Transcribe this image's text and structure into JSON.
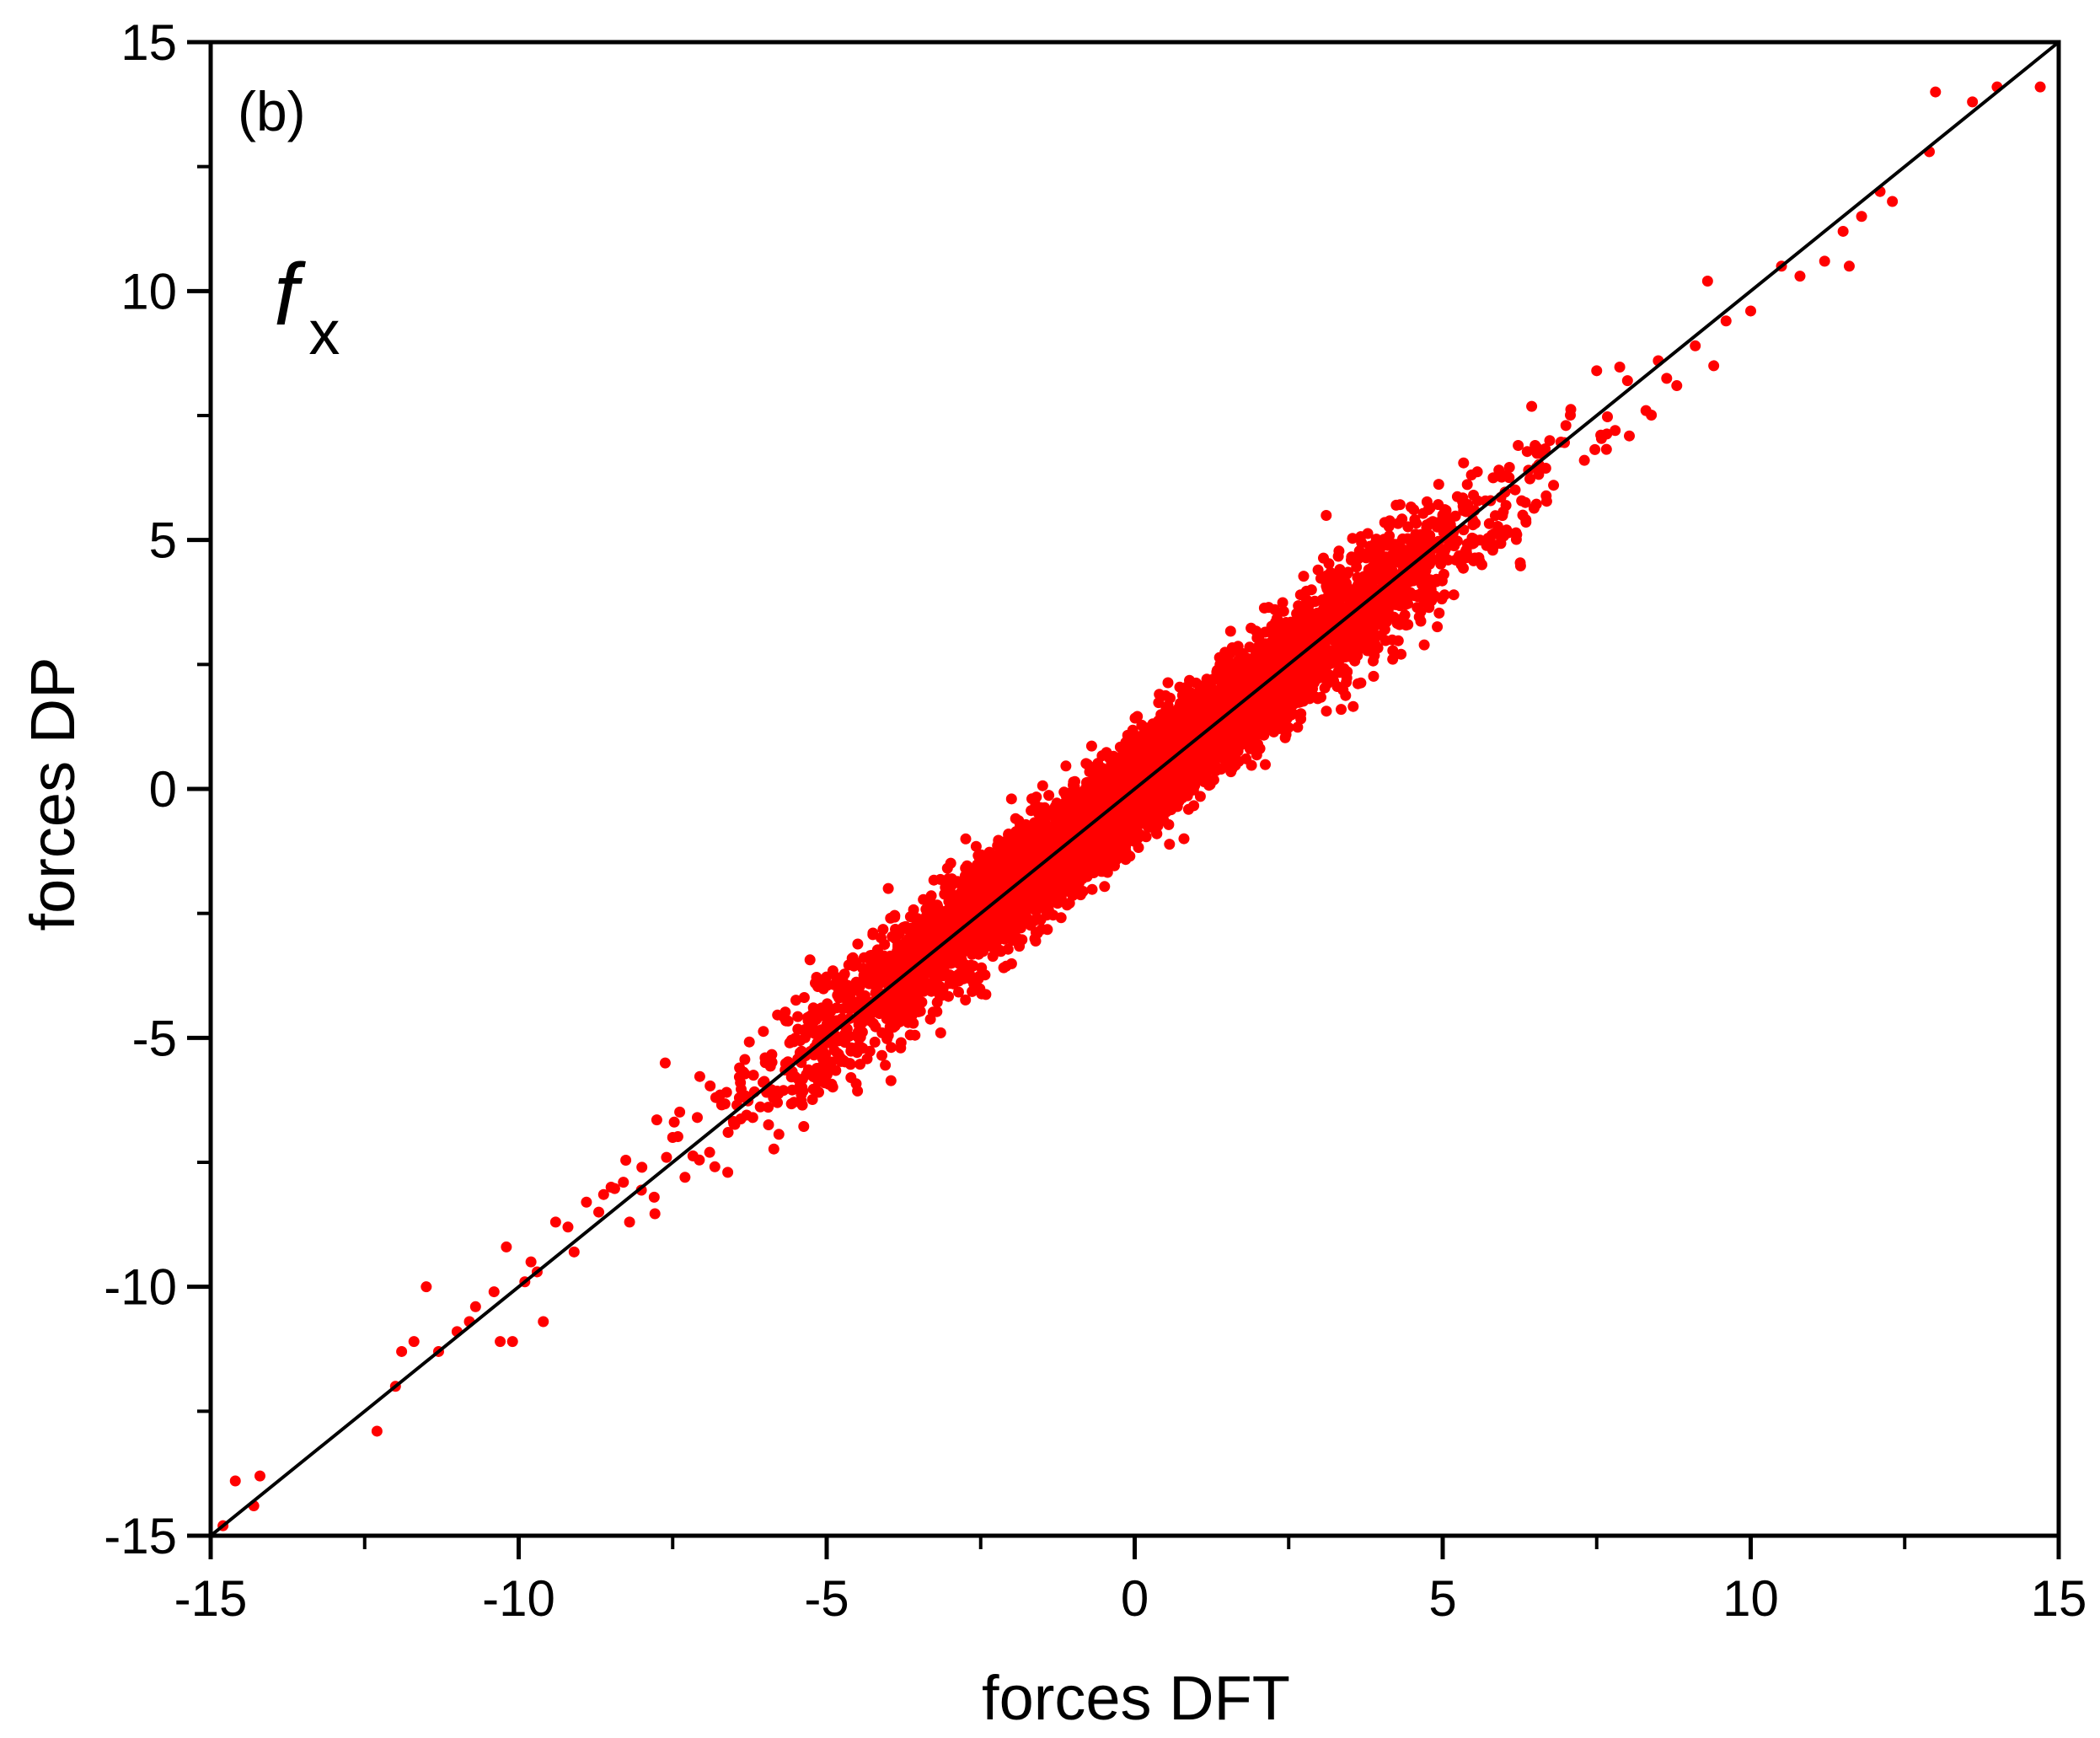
{
  "chart_data": {
    "type": "scatter",
    "panel_label": "(b)",
    "component_label": {
      "main": "f",
      "subscript": "x"
    },
    "xlabel": "forces DFT",
    "ylabel": "forces DP",
    "xlim": [
      -15,
      15
    ],
    "ylim": [
      -15,
      15
    ],
    "xticks": [
      "-15",
      "-10",
      "-5",
      "0",
      "5",
      "10",
      "15"
    ],
    "yticks": [
      "-15",
      "-10",
      "-5",
      "0",
      "5",
      "10",
      "15"
    ],
    "xtick_values": [
      -15,
      -10,
      -5,
      0,
      5,
      10,
      15
    ],
    "ytick_values": [
      -15,
      -10,
      -5,
      0,
      5,
      10,
      15
    ],
    "minor_tick_step": 2.5,
    "grid": false,
    "legend": "none",
    "marker_color": "#ff0000",
    "line_color": "#000000",
    "reference_line": {
      "x": [
        -15,
        15
      ],
      "y": [
        -15,
        15
      ]
    },
    "series": [
      {
        "points": [
          [
            -14.8,
            -14.8
          ],
          [
            -14.6,
            -13.9
          ],
          [
            -14.2,
            -13.8
          ],
          [
            -14.3,
            -14.4
          ],
          [
            -12.3,
            -12.9
          ],
          [
            -12.0,
            -12.0
          ],
          [
            -11.9,
            -11.3
          ],
          [
            -11.7,
            -11.1
          ],
          [
            -11.5,
            -10.0
          ],
          [
            -11.3,
            -11.3
          ],
          [
            -11.0,
            -10.9
          ],
          [
            -10.8,
            -10.7
          ],
          [
            -10.7,
            -10.4
          ],
          [
            -10.4,
            -10.1
          ],
          [
            -10.2,
            -9.2
          ],
          [
            -10.3,
            -11.1
          ],
          [
            -10.1,
            -11.1
          ],
          [
            -9.9,
            -9.9
          ],
          [
            -9.8,
            -9.5
          ],
          [
            -9.6,
            -10.7
          ],
          [
            -9.7,
            -9.7
          ],
          [
            -9.4,
            -8.7
          ],
          [
            -9.2,
            -8.8
          ],
          [
            -9.1,
            -9.3
          ],
          [
            -8.9,
            -8.3
          ],
          [
            -8.7,
            -8.5
          ],
          [
            -8.5,
            -8.0
          ],
          [
            -8.3,
            -7.9
          ],
          [
            -8.2,
            -8.7
          ],
          [
            -8.0,
            -7.6
          ],
          [
            -7.8,
            -8.2
          ],
          [
            -7.6,
            -7.4
          ],
          [
            -7.5,
            -7.0
          ],
          [
            -7.3,
            -7.8
          ],
          [
            -7.1,
            -6.6
          ],
          [
            -6.9,
            -7.3
          ],
          [
            -6.8,
            -6.2
          ],
          [
            -6.6,
            -6.9
          ],
          [
            -6.4,
            -5.9
          ],
          [
            -6.2,
            -6.6
          ],
          [
            -6.0,
            -5.4
          ],
          [
            -5.8,
            -6.3
          ],
          [
            -5.6,
            -5.1
          ],
          [
            -5.4,
            -6.0
          ],
          [
            -5.2,
            -4.5
          ],
          [
            -5.0,
            -5.6
          ],
          [
            -4.8,
            -4.2
          ],
          [
            -4.6,
            -5.2
          ],
          [
            -4.3,
            -3.6
          ],
          [
            -4.1,
            -4.9
          ],
          [
            -4.0,
            -2.0
          ],
          [
            -3.8,
            -4.4
          ],
          [
            -3.5,
            -3.0
          ],
          [
            -3.3,
            -3.9
          ],
          [
            -3.0,
            -2.4
          ],
          [
            -2.8,
            -3.5
          ],
          [
            -2.5,
            -1.9
          ],
          [
            -2.2,
            -3.0
          ],
          [
            -2.0,
            -0.2
          ],
          [
            -1.8,
            -2.5
          ],
          [
            -1.5,
            -0.9
          ],
          [
            -1.2,
            -1.9
          ],
          [
            -1.0,
            -0.3
          ],
          [
            -0.7,
            -1.4
          ],
          [
            -0.5,
            0.2
          ],
          [
            -0.2,
            -0.8
          ],
          [
            0.0,
            0.6
          ],
          [
            0.3,
            -0.3
          ],
          [
            0.5,
            1.1
          ],
          [
            0.8,
            -1.0
          ],
          [
            1.0,
            1.5
          ],
          [
            1.3,
            0.5
          ],
          [
            1.5,
            2.0
          ],
          [
            1.8,
            0.9
          ],
          [
            2.0,
            2.6
          ],
          [
            2.3,
            1.6
          ],
          [
            2.5,
            3.1
          ],
          [
            2.8,
            2.0
          ],
          [
            3.0,
            3.5
          ],
          [
            3.3,
            2.6
          ],
          [
            3.5,
            4.0
          ],
          [
            3.8,
            3.0
          ],
          [
            4.0,
            4.5
          ],
          [
            4.3,
            3.3
          ],
          [
            4.5,
            5.0
          ],
          [
            4.8,
            4.2
          ],
          [
            5.0,
            5.5
          ],
          [
            5.3,
            4.6
          ],
          [
            5.5,
            5.9
          ],
          [
            5.8,
            5.1
          ],
          [
            6.0,
            6.3
          ],
          [
            6.3,
            5.5
          ],
          [
            6.5,
            6.9
          ],
          [
            6.8,
            6.1
          ],
          [
            7.0,
            7.3
          ],
          [
            7.3,
            6.6
          ],
          [
            7.5,
            8.4
          ],
          [
            7.8,
            7.2
          ],
          [
            8.0,
            8.2
          ],
          [
            8.3,
            7.6
          ],
          [
            8.5,
            8.6
          ],
          [
            8.8,
            8.1
          ],
          [
            9.1,
            8.9
          ],
          [
            9.4,
            8.5
          ],
          [
            9.3,
            10.2
          ],
          [
            9.6,
            9.4
          ],
          [
            10.0,
            9.6
          ],
          [
            10.5,
            10.5
          ],
          [
            10.8,
            10.3
          ],
          [
            11.2,
            10.6
          ],
          [
            11.5,
            11.2
          ],
          [
            11.8,
            11.5
          ],
          [
            11.6,
            10.5
          ],
          [
            12.1,
            12.0
          ],
          [
            12.3,
            11.8
          ],
          [
            12.9,
            12.8
          ],
          [
            13.0,
            14.0
          ],
          [
            13.6,
            13.8
          ],
          [
            14.0,
            14.1
          ],
          [
            14.7,
            14.1
          ]
        ]
      }
    ]
  }
}
